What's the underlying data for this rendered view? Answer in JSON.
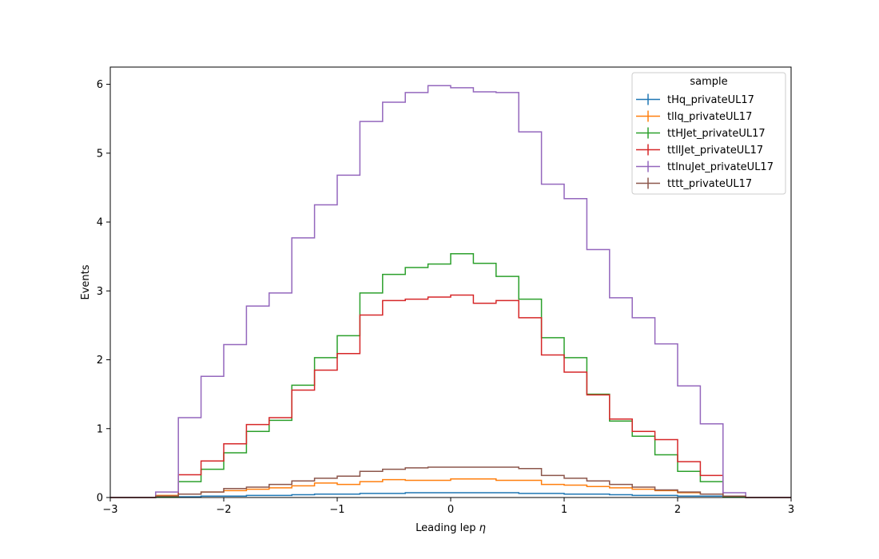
{
  "chart_data": {
    "type": "histogram-step",
    "xlabel": "Leading lep",
    "xlabel_symbol": "η",
    "ylabel": "Events",
    "xlim": [
      -3,
      3
    ],
    "ylim": [
      0,
      6.25
    ],
    "xticks": [
      -3,
      -2,
      -1,
      0,
      1,
      2,
      3
    ],
    "xtick_labels": [
      "−3",
      "−2",
      "−1",
      "0",
      "1",
      "2",
      "3"
    ],
    "yticks": [
      0,
      1,
      2,
      3,
      4,
      5,
      6
    ],
    "ytick_labels": [
      "0",
      "1",
      "2",
      "3",
      "4",
      "5",
      "6"
    ],
    "legend": {
      "title": "sample",
      "position": "top-right"
    },
    "bin_edges": [
      -3.0,
      -2.8,
      -2.6,
      -2.4,
      -2.2,
      -2.0,
      -1.8,
      -1.6,
      -1.4,
      -1.2,
      -1.0,
      -0.8,
      -0.6,
      -0.4,
      -0.2,
      0.0,
      0.2,
      0.4,
      0.6,
      0.8,
      1.0,
      1.2,
      1.4,
      1.6,
      1.8,
      2.0,
      2.2,
      2.4,
      2.6,
      2.8,
      3.0
    ],
    "series": [
      {
        "name": "tHq_privateUL17",
        "color": "#1f77b4",
        "values": [
          0,
          0,
          0.01,
          0.01,
          0.02,
          0.02,
          0.03,
          0.03,
          0.04,
          0.05,
          0.05,
          0.06,
          0.06,
          0.07,
          0.07,
          0.07,
          0.07,
          0.07,
          0.06,
          0.06,
          0.05,
          0.05,
          0.04,
          0.03,
          0.03,
          0.02,
          0.02,
          0.01,
          0,
          0
        ]
      },
      {
        "name": "tllq_privateUL17",
        "color": "#ff7f0e",
        "values": [
          0,
          0,
          0.03,
          0.05,
          0.08,
          0.1,
          0.12,
          0.14,
          0.17,
          0.21,
          0.19,
          0.23,
          0.26,
          0.25,
          0.25,
          0.27,
          0.27,
          0.25,
          0.25,
          0.19,
          0.18,
          0.16,
          0.14,
          0.12,
          0.1,
          0.07,
          0.05,
          0.02,
          0,
          0
        ]
      },
      {
        "name": "ttHJet_privateUL17",
        "color": "#2ca02c",
        "values": [
          0,
          0,
          0.01,
          0.23,
          0.41,
          0.65,
          0.96,
          1.12,
          1.63,
          2.03,
          2.35,
          2.97,
          3.24,
          3.34,
          3.39,
          3.54,
          3.4,
          3.21,
          2.88,
          2.32,
          2.03,
          1.5,
          1.11,
          0.89,
          0.62,
          0.38,
          0.23,
          0.01,
          0,
          0
        ]
      },
      {
        "name": "ttllJet_privateUL17",
        "color": "#d62728",
        "values": [
          0,
          0,
          0.02,
          0.33,
          0.53,
          0.78,
          1.06,
          1.16,
          1.56,
          1.85,
          2.09,
          2.65,
          2.86,
          2.88,
          2.91,
          2.94,
          2.82,
          2.86,
          2.61,
          2.07,
          1.82,
          1.49,
          1.14,
          0.96,
          0.84,
          0.52,
          0.32,
          0.02,
          0,
          0
        ]
      },
      {
        "name": "ttlnuJet_privateUL17",
        "color": "#9467bd",
        "values": [
          0,
          0,
          0.08,
          1.16,
          1.76,
          2.22,
          2.78,
          2.97,
          3.77,
          4.25,
          4.68,
          5.46,
          5.74,
          5.88,
          5.98,
          5.95,
          5.89,
          5.88,
          5.31,
          4.55,
          4.34,
          3.6,
          2.9,
          2.61,
          2.23,
          1.62,
          1.07,
          0.07,
          0,
          0
        ]
      },
      {
        "name": "tttt_privateUL17",
        "color": "#8c564b",
        "values": [
          0,
          0,
          0.02,
          0.05,
          0.08,
          0.13,
          0.15,
          0.19,
          0.24,
          0.28,
          0.31,
          0.38,
          0.41,
          0.43,
          0.44,
          0.44,
          0.44,
          0.44,
          0.42,
          0.32,
          0.28,
          0.24,
          0.19,
          0.15,
          0.11,
          0.08,
          0.05,
          0.02,
          0,
          0
        ]
      }
    ]
  }
}
